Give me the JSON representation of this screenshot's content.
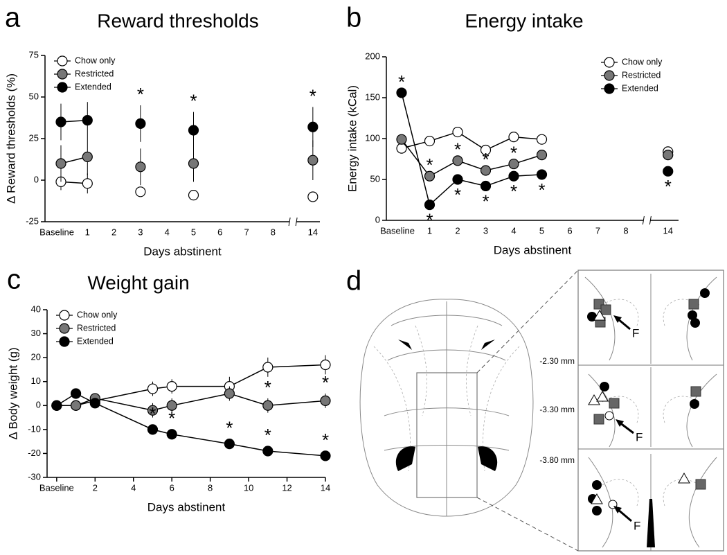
{
  "chart_data": [
    {
      "type": "line",
      "panel": "a",
      "title": "Reward thresholds",
      "x_label": "Days abstinent",
      "y_label": "Δ Reward thresholds (%)",
      "categories": [
        "Baseline",
        "1",
        "2",
        "3",
        "4",
        "5",
        "6",
        "7",
        "8",
        "14"
      ],
      "ylim": [
        -25,
        75
      ],
      "yticks": [
        -25,
        0,
        25,
        50,
        75
      ],
      "legend": "upper left",
      "series": [
        {
          "name": "Chow only",
          "color": "#ffffff",
          "values": [
            -1,
            -2,
            null,
            -7,
            null,
            -9,
            null,
            null,
            null,
            -10
          ],
          "errors": [
            5,
            6,
            null,
            3,
            null,
            2,
            null,
            null,
            null,
            3
          ]
        },
        {
          "name": "Restricted",
          "color": "#777777",
          "values": [
            10,
            14,
            null,
            8,
            null,
            10,
            null,
            null,
            null,
            12
          ],
          "errors": [
            11,
            11,
            null,
            11,
            null,
            11,
            null,
            null,
            null,
            12
          ]
        },
        {
          "name": "Extended",
          "color": "#000000",
          "values": [
            35,
            36,
            null,
            34,
            null,
            30,
            null,
            null,
            null,
            32
          ],
          "errors": [
            11,
            11,
            null,
            11,
            null,
            11,
            null,
            null,
            null,
            12
          ],
          "sig": [
            null,
            null,
            null,
            "*",
            null,
            "*",
            null,
            null,
            null,
            "*"
          ]
        }
      ]
    },
    {
      "type": "line",
      "panel": "b",
      "title": "Energy intake",
      "x_label": "Days abstinent",
      "y_label": "Energy intake (kCal)",
      "categories": [
        "Baseline",
        "1",
        "2",
        "3",
        "4",
        "5",
        "6",
        "7",
        "8",
        "14"
      ],
      "ylim": [
        0,
        200
      ],
      "yticks": [
        0,
        50,
        100,
        150,
        200
      ],
      "legend": "upper right",
      "series": [
        {
          "name": "Chow only",
          "color": "#ffffff",
          "values": [
            88,
            97,
            108,
            86,
            102,
            99,
            null,
            null,
            null,
            84
          ]
        },
        {
          "name": "Restricted",
          "color": "#777777",
          "values": [
            99,
            54,
            73,
            61,
            69,
            80,
            null,
            null,
            null,
            80
          ],
          "sig": [
            null,
            "*",
            "*",
            "*",
            "*",
            null,
            null,
            null,
            null,
            null
          ],
          "sig_side": "above"
        },
        {
          "name": "Extended",
          "color": "#000000",
          "values": [
            156,
            19,
            50,
            42,
            54,
            56,
            null,
            null,
            null,
            60
          ],
          "sig": [
            "*",
            "*",
            "*",
            "*",
            "*",
            "*",
            null,
            null,
            null,
            "*"
          ],
          "sig_side": "below"
        }
      ]
    },
    {
      "type": "line",
      "panel": "c",
      "title": "Weight gain",
      "x_label": "Days abstinent",
      "y_label": "Δ Body weight (g)",
      "x": [
        0,
        1,
        2,
        5,
        6,
        9,
        11,
        14
      ],
      "xlim": [
        -0.5,
        14
      ],
      "xticks": [
        {
          "value": 0,
          "label": "Baseline"
        },
        2,
        4,
        6,
        8,
        10,
        12,
        14
      ],
      "ylim": [
        -30,
        40
      ],
      "yticks": [
        -30,
        -20,
        -10,
        0,
        10,
        20,
        30,
        40
      ],
      "legend": "upper left",
      "series": [
        {
          "name": "Chow only",
          "color": "#ffffff",
          "values": [
            0,
            0,
            2,
            7,
            8,
            8,
            16,
            17
          ],
          "errors": [
            1,
            1,
            1,
            3,
            3,
            4,
            4,
            4
          ]
        },
        {
          "name": "Restricted",
          "color": "#777777",
          "values": [
            0,
            0,
            3,
            -2,
            0,
            5,
            0,
            2
          ],
          "errors": [
            1,
            1,
            1,
            3,
            3,
            3,
            3,
            3
          ],
          "sig": [
            null,
            null,
            null,
            null,
            null,
            null,
            "*",
            "*"
          ]
        },
        {
          "name": "Extended",
          "color": "#000000",
          "values": [
            0,
            5,
            1,
            -10,
            -12,
            -16,
            -19,
            -21
          ],
          "errors": [
            1,
            1,
            1,
            2,
            2,
            2,
            2,
            2
          ],
          "sig": [
            null,
            null,
            null,
            "*",
            "*",
            "*",
            "*",
            "*"
          ]
        }
      ]
    }
  ],
  "panel_d": {
    "label": "d",
    "levels": [
      "-2.30 mm",
      "-3.30 mm",
      "-3.80 mm"
    ],
    "markers": [
      "F",
      "F",
      "F"
    ]
  }
}
